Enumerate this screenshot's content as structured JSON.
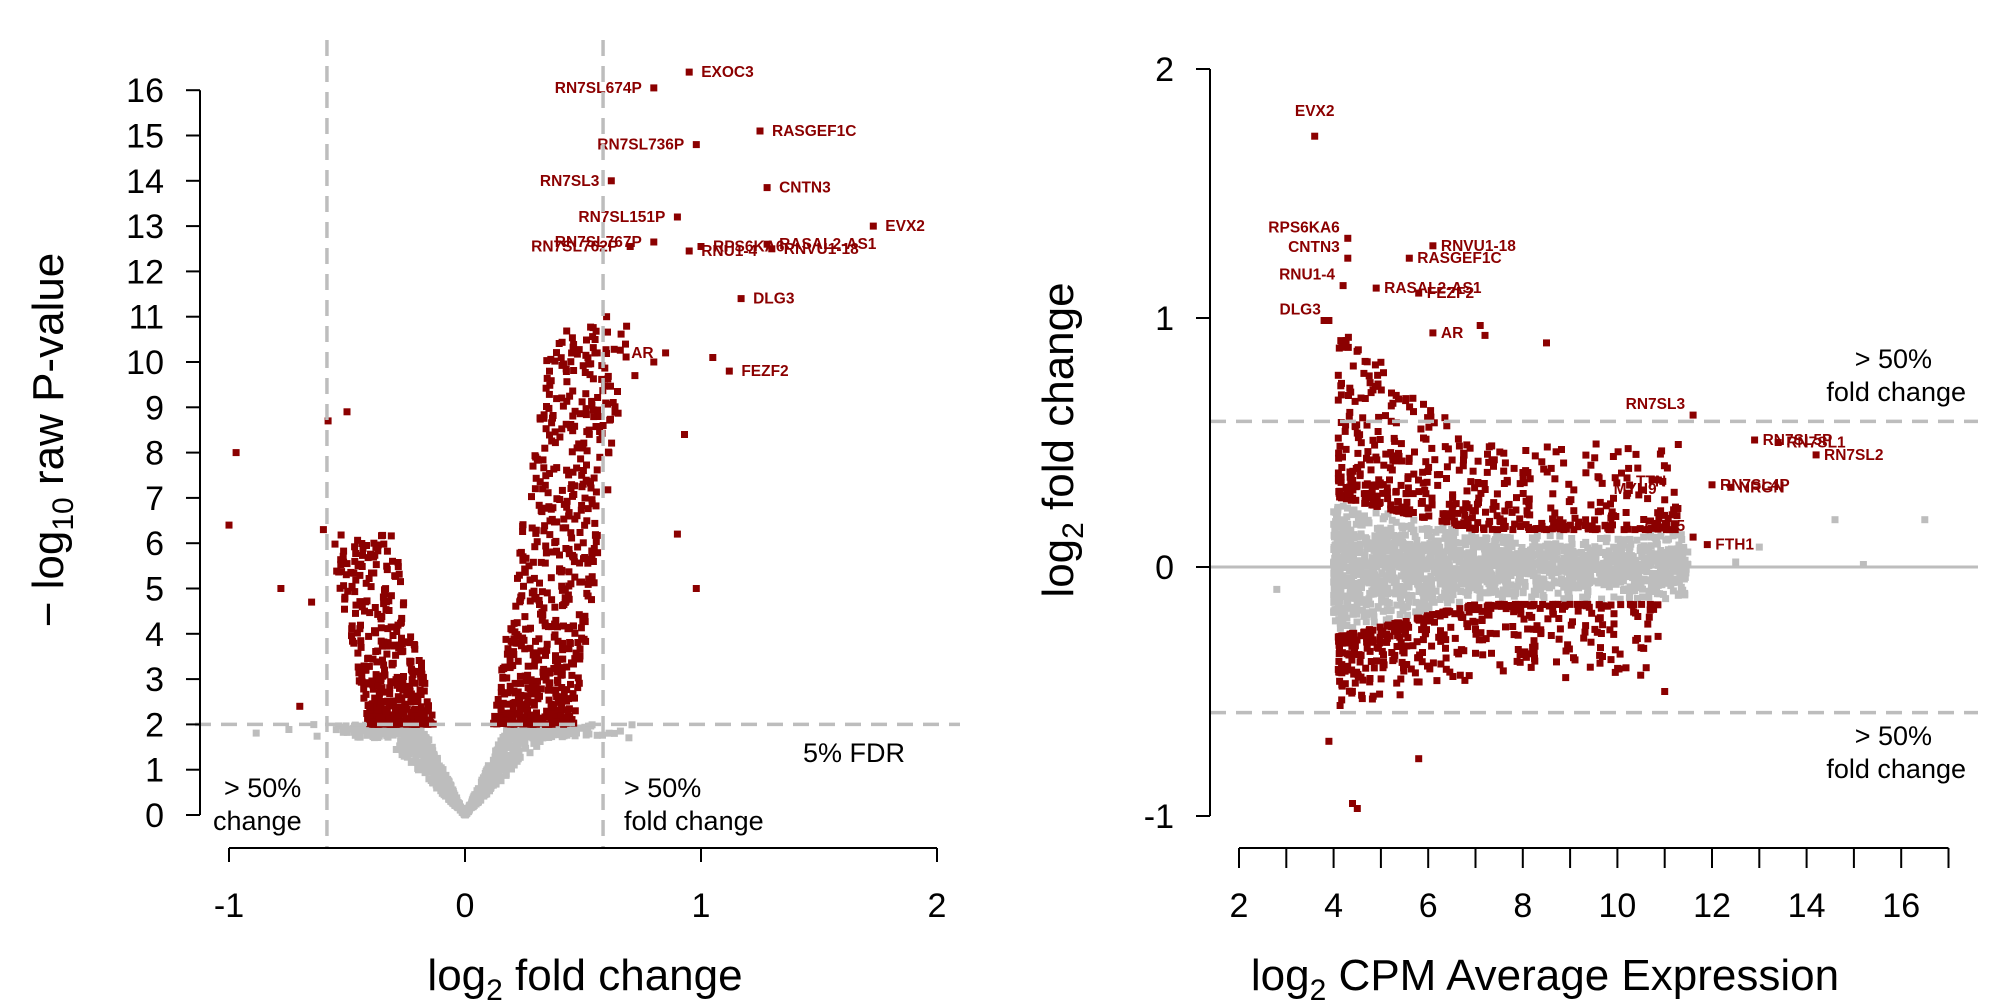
{
  "chart_data": [
    {
      "type": "scatter",
      "panel": "volcano",
      "xlabel_base": "log",
      "xlabel_sub": "2",
      "xlabel_rest": " fold change",
      "ylabel_prefix": "− log",
      "ylabel_sub": "10",
      "ylabel_rest": " raw P-value",
      "xlim": [
        -1,
        2
      ],
      "ylim": [
        0,
        16
      ],
      "x_ticks": [
        "-1",
        "0",
        "1",
        "2"
      ],
      "y_ticks": [
        "0",
        "1",
        "2",
        "3",
        "4",
        "5",
        "6",
        "7",
        "8",
        "9",
        "10",
        "11",
        "12",
        "13",
        "14",
        "15",
        "16"
      ],
      "thresholds": {
        "fdr_y": 2.0,
        "fold_x": [
          -0.585,
          0.585
        ]
      },
      "annotations": {
        "fdr": "5% FDR",
        "left_line1": "> 50%",
        "left_line2": "change",
        "right_line1": "> 50%",
        "right_line2": "fold change"
      },
      "colors": {
        "significant": "#8b0000",
        "nonsignificant": "#bdbdbd"
      },
      "labeled_genes": [
        {
          "name": "EXOC3",
          "x": 0.95,
          "y": 16.4
        },
        {
          "name": "RN7SL674P",
          "x": 0.8,
          "y": 16.05
        },
        {
          "name": "RASGEF1C",
          "x": 1.25,
          "y": 15.1
        },
        {
          "name": "RN7SL736P",
          "x": 0.98,
          "y": 14.8
        },
        {
          "name": "RN7SL3",
          "x": 0.62,
          "y": 14.0
        },
        {
          "name": "RN7SL151P",
          "x": 0.9,
          "y": 13.2
        },
        {
          "name": "CNTN3",
          "x": 1.28,
          "y": 13.85
        },
        {
          "name": "RN7SL767P",
          "x": 0.8,
          "y": 12.65
        },
        {
          "name": "RN7SL762P",
          "x": 0.7,
          "y": 12.55
        },
        {
          "name": "EVX2",
          "x": 1.73,
          "y": 13.0
        },
        {
          "name": "RASAL2-AS1",
          "x": 1.28,
          "y": 12.6
        },
        {
          "name": "RPS6KA6",
          "x": 1.0,
          "y": 12.55
        },
        {
          "name": "RNVU1-18",
          "x": 1.3,
          "y": 12.5
        },
        {
          "name": "RNU1-4",
          "x": 0.95,
          "y": 12.45
        },
        {
          "name": "DLG3",
          "x": 1.17,
          "y": 11.4
        },
        {
          "name": "AR",
          "x": 0.85,
          "y": 10.2
        },
        {
          "name": "FEZF2",
          "x": 1.12,
          "y": 9.8
        }
      ]
    },
    {
      "type": "scatter",
      "panel": "MA",
      "xlabel_base": "log",
      "xlabel_sub": "2",
      "xlabel_rest": " CPM Average Expression",
      "ylabel_base": "log",
      "ylabel_sub": "2",
      "ylabel_rest": " fold change",
      "xlim": [
        2,
        17
      ],
      "ylim": [
        -1,
        2
      ],
      "x_ticks": [
        "2",
        "4",
        "6",
        "8",
        "10",
        "12",
        "14",
        "16"
      ],
      "y_ticks": [
        "-1",
        "0",
        "1",
        "2"
      ],
      "thresholds": {
        "upper": 0.585,
        "lower": -0.585,
        "zero": 0
      },
      "annotations": {
        "upper_line1": "> 50%",
        "upper_line2": "fold change",
        "lower_line1": "> 50%",
        "lower_line2": "fold change"
      },
      "colors": {
        "significant": "#8b0000",
        "nonsignificant": "#bdbdbd"
      },
      "labeled_genes": [
        {
          "name": "EVX2",
          "x": 3.6,
          "y": 1.73
        },
        {
          "name": "RPS6KA6",
          "x": 4.3,
          "y": 1.32
        },
        {
          "name": "CNTN3",
          "x": 4.3,
          "y": 1.24
        },
        {
          "name": "RNVU1-18",
          "x": 6.1,
          "y": 1.29
        },
        {
          "name": "RASGEF1C",
          "x": 5.6,
          "y": 1.24
        },
        {
          "name": "RNU1-4",
          "x": 4.2,
          "y": 1.13
        },
        {
          "name": "RASAL2-AS1",
          "x": 4.9,
          "y": 1.12
        },
        {
          "name": "FEZF2",
          "x": 5.8,
          "y": 1.1
        },
        {
          "name": "DLG3",
          "x": 3.9,
          "y": 0.99
        },
        {
          "name": "AR",
          "x": 6.1,
          "y": 0.94
        },
        {
          "name": "RN7SL3",
          "x": 11.6,
          "y": 0.61
        },
        {
          "name": "RN7SL5P",
          "x": 12.9,
          "y": 0.51
        },
        {
          "name": "RN7SL1",
          "x": 13.4,
          "y": 0.5
        },
        {
          "name": "RN7SL2",
          "x": 14.2,
          "y": 0.45
        },
        {
          "name": "RN7SL4P",
          "x": 12.0,
          "y": 0.33
        },
        {
          "name": "TTN",
          "x": 11.2,
          "y": 0.3
        },
        {
          "name": "NRGN",
          "x": 12.4,
          "y": 0.32
        },
        {
          "name": "MYH9",
          "x": 11.0,
          "y": 0.27
        },
        {
          "name": "CCL5",
          "x": 11.6,
          "y": 0.12
        },
        {
          "name": "FTH1",
          "x": 11.9,
          "y": 0.09
        }
      ]
    }
  ]
}
